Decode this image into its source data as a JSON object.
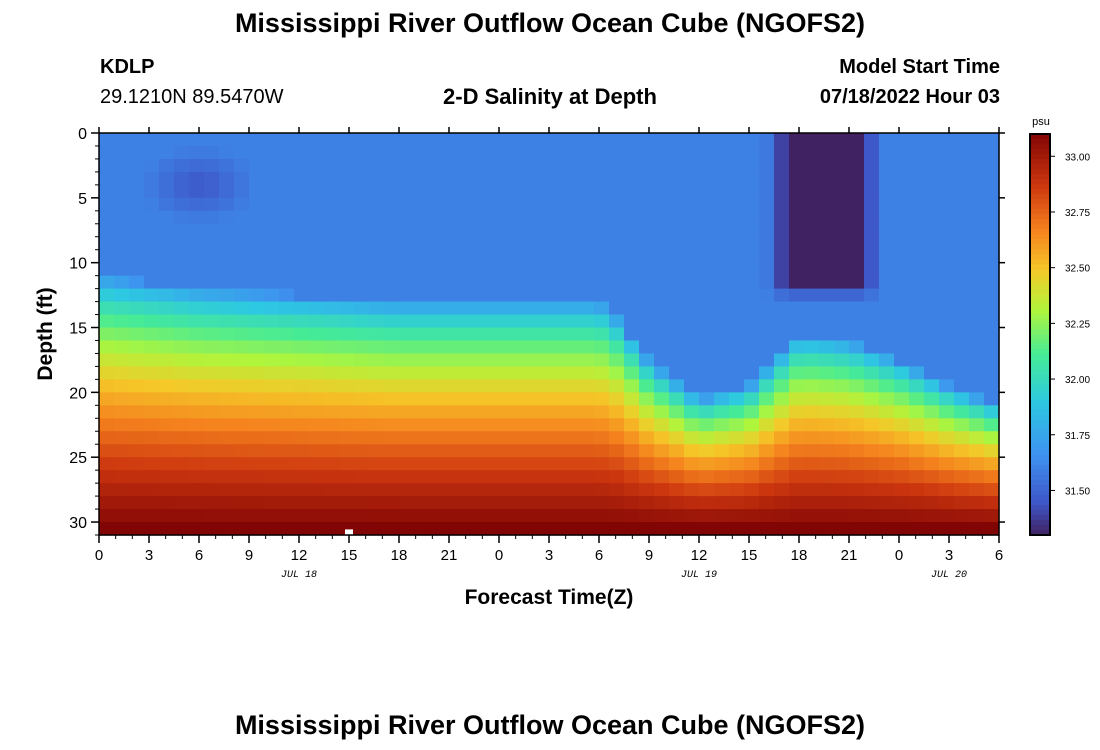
{
  "header": {
    "title": "Mississippi River Outflow Ocean Cube (NGOFS2)",
    "station_id": "KDLP",
    "station_coords": "29.1210N  89.5470W",
    "subtitle": "2-D Salinity at Depth",
    "model_start_label": "Model Start Time",
    "model_start_value": "07/18/2022 Hour 03"
  },
  "footer": {
    "title": "Mississippi River Outflow Ocean Cube (NGOFS2)"
  },
  "chart_data": {
    "type": "heatmap",
    "title": "2-D Salinity at Depth",
    "xlabel": "Forecast Time(Z)",
    "ylabel": "Depth (ft)",
    "x_range_hours": [
      0,
      54
    ],
    "x_tick_labels": [
      "0",
      "3",
      "6",
      "9",
      "12",
      "15",
      "18",
      "21",
      "0",
      "3",
      "6",
      "9",
      "12",
      "15",
      "18",
      "21",
      "0",
      "3",
      "6"
    ],
    "date_labels": [
      {
        "text": "JUL 18",
        "hour": 12
      },
      {
        "text": "JUL 19",
        "hour": 36
      },
      {
        "text": "JUL 20",
        "hour": 51
      }
    ],
    "y_range_ft": [
      0,
      31
    ],
    "y_tick_labels": [
      "0",
      "5",
      "10",
      "15",
      "20",
      "25",
      "30"
    ],
    "colorbar": {
      "unit": "psu",
      "range": [
        31.3,
        33.1
      ],
      "ticks": [
        "33.00",
        "32.75",
        "32.50",
        "32.25",
        "32.00",
        "31.75",
        "31.50"
      ]
    },
    "grid": false,
    "halocline_depth_ft": [
      {
        "x": 0,
        "depth": 14.5
      },
      {
        "x": 6,
        "depth": 15.5
      },
      {
        "x": 18,
        "depth": 16.5
      },
      {
        "x": 24,
        "depth": 16.5
      },
      {
        "x": 30,
        "depth": 16.5
      },
      {
        "x": 31,
        "depth": 17.5
      },
      {
        "x": 33,
        "depth": 21
      },
      {
        "x": 36,
        "depth": 24
      },
      {
        "x": 39,
        "depth": 23
      },
      {
        "x": 42,
        "depth": 19
      },
      {
        "x": 45,
        "depth": 19.5
      },
      {
        "x": 48,
        "depth": 21
      },
      {
        "x": 51,
        "depth": 23
      },
      {
        "x": 54,
        "depth": 24.5
      }
    ],
    "low_salinity_core": {
      "x_hours": [
        42,
        45
      ],
      "depth_ft": [
        0,
        12
      ],
      "salinity": 31.3
    },
    "surface_minimum": {
      "x_hour": 6,
      "depth_ft": 4,
      "salinity": 31.4
    },
    "bottom_salinity": 33.1
  }
}
